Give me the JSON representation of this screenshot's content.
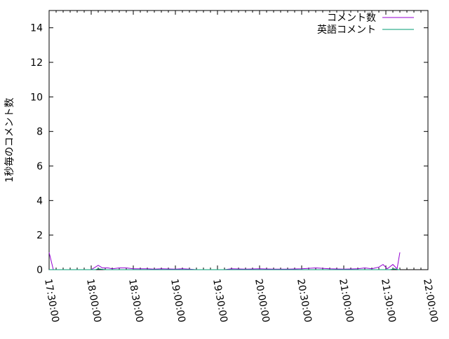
{
  "chart_data": {
    "type": "line",
    "title": "",
    "xlabel": "",
    "ylabel": "1秒毎のコメント数",
    "xlim": [
      "17:30:00",
      "22:00:00"
    ],
    "ylim": [
      0,
      15
    ],
    "xticks": [
      "17:30:00",
      "18:00:00",
      "18:30:00",
      "19:00:00",
      "19:30:00",
      "20:00:00",
      "20:30:00",
      "21:00:00",
      "21:30:00",
      "22:00:00"
    ],
    "yticks": [
      0,
      2,
      4,
      6,
      8,
      10,
      12,
      14
    ],
    "grid": false,
    "legend": "top-right",
    "series": [
      {
        "name": "コメント数",
        "color": "#9400d3",
        "x": [
          "17:30",
          "17:33",
          "17:45",
          "18:00",
          "18:05",
          "18:08",
          "18:12",
          "18:15",
          "18:20",
          "18:25",
          "18:30",
          "18:35",
          "18:40",
          "18:45",
          "18:50",
          "19:00",
          "19:05",
          "19:10",
          "19:15",
          "19:35",
          "19:40",
          "19:50",
          "20:00",
          "20:10",
          "20:20",
          "20:30",
          "20:40",
          "20:50",
          "21:00",
          "21:10",
          "21:15",
          "21:20",
          "21:25",
          "21:28",
          "21:31",
          "21:35",
          "21:38",
          "21:40"
        ],
        "values": [
          1.0,
          0,
          0,
          0,
          0.25,
          0.1,
          0.1,
          0.05,
          0.1,
          0.1,
          0.05,
          0.05,
          0.05,
          0.03,
          0.05,
          0.03,
          0.05,
          0.03,
          0,
          0,
          0.05,
          0.03,
          0.05,
          0.03,
          0.03,
          0.05,
          0.1,
          0.05,
          0.03,
          0.05,
          0.1,
          0.05,
          0.15,
          0.3,
          0.05,
          0.3,
          0.05,
          1.0
        ]
      },
      {
        "name": "英語コメント",
        "color": "#009e73",
        "x": [
          "17:30",
          "18:03",
          "18:05",
          "18:10",
          "21:33",
          "21:36",
          "21:39",
          "21:40"
        ],
        "values": [
          0,
          0,
          0.05,
          0,
          0,
          0.05,
          0,
          0
        ]
      }
    ]
  }
}
